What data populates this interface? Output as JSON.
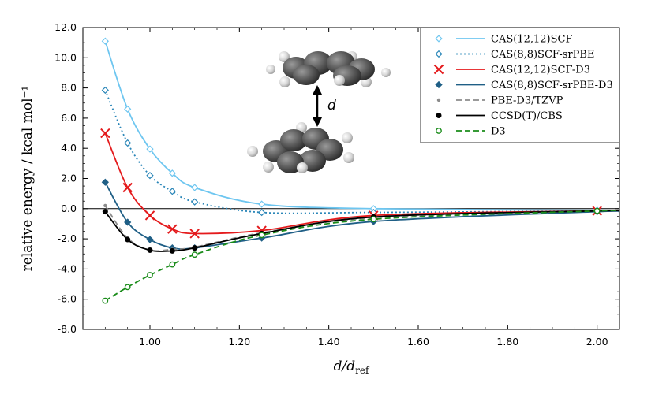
{
  "chart_data": {
    "type": "line",
    "xlabel": "d/d_ref",
    "ylabel": "relative energy / kcal mol⁻¹",
    "xlim": [
      0.85,
      2.05
    ],
    "ylim": [
      -8.0,
      12.0
    ],
    "xticks": [
      "1.00",
      "1.20",
      "1.40",
      "1.60",
      "1.80",
      "2.00"
    ],
    "yticks": [
      "12.0",
      "10.0",
      "8.0",
      "6.0",
      "4.0",
      "2.0",
      "0.0",
      "-2.0",
      "-4.0",
      "-6.0",
      "-8.0"
    ],
    "x": [
      0.9,
      0.95,
      1.0,
      1.05,
      1.1,
      1.25,
      1.5,
      2.0
    ],
    "series": [
      {
        "name": "CAS(12,12)SCF",
        "color": "#6ec6f0",
        "dash": "solid",
        "marker": "diamond-open",
        "values": [
          11.1,
          6.6,
          3.95,
          2.35,
          1.4,
          0.3,
          0.0,
          -0.1
        ]
      },
      {
        "name": "CAS(8,8)SCF-srPBE",
        "color": "#2a86b8",
        "dash": "dotted",
        "marker": "diamond-open",
        "values": [
          7.85,
          4.35,
          2.2,
          1.15,
          0.45,
          -0.25,
          -0.25,
          -0.15
        ]
      },
      {
        "name": "CAS(12,12)SCF-D3",
        "color": "#e41a1c",
        "dash": "solid",
        "marker": "x",
        "values": [
          5.0,
          1.4,
          -0.45,
          -1.35,
          -1.65,
          -1.45,
          -0.45,
          -0.15
        ]
      },
      {
        "name": "CAS(8,8)SCF-srPBE-D3",
        "color": "#1f5f86",
        "dash": "solid",
        "marker": "diamond-filled",
        "values": [
          1.75,
          -0.9,
          -2.05,
          -2.6,
          -2.6,
          -1.95,
          -0.85,
          -0.2
        ]
      },
      {
        "name": "PBE-D3/TZVP",
        "color": "#8c8c8c",
        "dash": "dashed",
        "marker": "dot-small",
        "values": [
          0.2,
          -1.95,
          -2.75,
          -2.7,
          -2.55,
          -1.6,
          -0.6,
          -0.15
        ]
      },
      {
        "name": "CCSD(T)/CBS",
        "color": "#000000",
        "dash": "solid",
        "marker": "dot-filled",
        "values": [
          -0.2,
          -2.05,
          -2.75,
          -2.8,
          -2.6,
          -1.65,
          -0.55,
          -0.15
        ]
      },
      {
        "name": "D3",
        "color": "#1a8c1a",
        "dash": "dashed",
        "marker": "circle-open",
        "values": [
          -6.1,
          -5.2,
          -4.4,
          -3.7,
          -3.05,
          -1.75,
          -0.7,
          -0.15
        ]
      }
    ],
    "zero_line": true,
    "legend_position": "top-right",
    "inset": {
      "label": "d"
    }
  }
}
